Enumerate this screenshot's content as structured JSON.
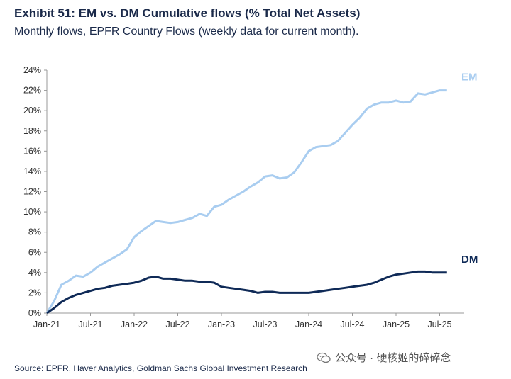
{
  "header": {
    "title": "Exhibit 51: EM vs. DM Cumulative flows (% Total Net Assets)",
    "subtitle": "Monthly flows, EPFR Country Flows (weekly data for current month)."
  },
  "footer": {
    "source": "Source: EPFR, Haver Analytics, Goldman Sachs Global Investment Research"
  },
  "watermark": {
    "text": "公众号 · 硬核姬的碎碎念"
  },
  "chart_data": {
    "type": "line",
    "title": "Exhibit 51: EM vs. DM Cumulative flows (% Total Net Assets)",
    "subtitle": "Monthly flows, EPFR Country Flows (weekly data for current month).",
    "xlabel": "",
    "ylabel": "",
    "ylim": [
      0,
      24
    ],
    "xlim_months": [
      0,
      56
    ],
    "yticks": [
      0,
      2,
      4,
      6,
      8,
      10,
      12,
      14,
      16,
      18,
      20,
      22,
      24
    ],
    "ytick_labels": [
      "0%",
      "2%",
      "4%",
      "6%",
      "8%",
      "10%",
      "12%",
      "14%",
      "16%",
      "18%",
      "20%",
      "22%",
      "24%"
    ],
    "xticks": [
      "Jan-21",
      "Jul-21",
      "Jan-22",
      "Jul-22",
      "Jan-23",
      "Jul-23",
      "Jan-24",
      "Jul-24",
      "Jan-25",
      "Jul-25"
    ],
    "x": [
      "2021-01",
      "2021-02",
      "2021-03",
      "2021-04",
      "2021-05",
      "2021-06",
      "2021-07",
      "2021-08",
      "2021-09",
      "2021-10",
      "2021-11",
      "2021-12",
      "2022-01",
      "2022-02",
      "2022-03",
      "2022-04",
      "2022-05",
      "2022-06",
      "2022-07",
      "2022-08",
      "2022-09",
      "2022-10",
      "2022-11",
      "2022-12",
      "2023-01",
      "2023-02",
      "2023-03",
      "2023-04",
      "2023-05",
      "2023-06",
      "2023-07",
      "2023-08",
      "2023-09",
      "2023-10",
      "2023-11",
      "2023-12",
      "2024-01",
      "2024-02",
      "2024-03",
      "2024-04",
      "2024-05",
      "2024-06",
      "2024-07",
      "2024-08",
      "2024-09",
      "2024-10",
      "2024-11",
      "2024-12",
      "2025-01",
      "2025-02",
      "2025-03",
      "2025-04",
      "2025-05",
      "2025-06",
      "2025-07",
      "2025-08"
    ],
    "series": [
      {
        "name": "EM",
        "color": "#a9cdf0",
        "values": [
          0.0,
          1.2,
          2.8,
          3.2,
          3.7,
          3.6,
          4.0,
          4.6,
          5.0,
          5.4,
          5.8,
          6.3,
          7.5,
          8.1,
          8.6,
          9.1,
          9.0,
          8.9,
          9.0,
          9.2,
          9.4,
          9.8,
          9.6,
          10.5,
          10.7,
          11.2,
          11.6,
          12.0,
          12.5,
          12.9,
          13.5,
          13.6,
          13.3,
          13.4,
          13.9,
          14.9,
          16.0,
          16.4,
          16.5,
          16.6,
          17.0,
          17.8,
          18.6,
          19.3,
          20.2,
          20.6,
          20.8,
          20.8,
          21.0,
          20.8,
          20.9,
          21.7,
          21.6,
          21.8,
          22.0,
          22.0
        ]
      },
      {
        "name": "DM",
        "color": "#0f2a57",
        "values": [
          0.0,
          0.5,
          1.1,
          1.5,
          1.8,
          2.0,
          2.2,
          2.4,
          2.5,
          2.7,
          2.8,
          2.9,
          3.0,
          3.2,
          3.5,
          3.6,
          3.4,
          3.4,
          3.3,
          3.2,
          3.2,
          3.1,
          3.1,
          3.0,
          2.6,
          2.5,
          2.4,
          2.3,
          2.2,
          2.0,
          2.1,
          2.1,
          2.0,
          2.0,
          2.0,
          2.0,
          2.0,
          2.1,
          2.2,
          2.3,
          2.4,
          2.5,
          2.6,
          2.7,
          2.8,
          3.0,
          3.3,
          3.6,
          3.8,
          3.9,
          4.0,
          4.1,
          4.1,
          4.0,
          4.0,
          4.0
        ]
      }
    ],
    "grid": false,
    "legend": "end-of-line labels"
  }
}
